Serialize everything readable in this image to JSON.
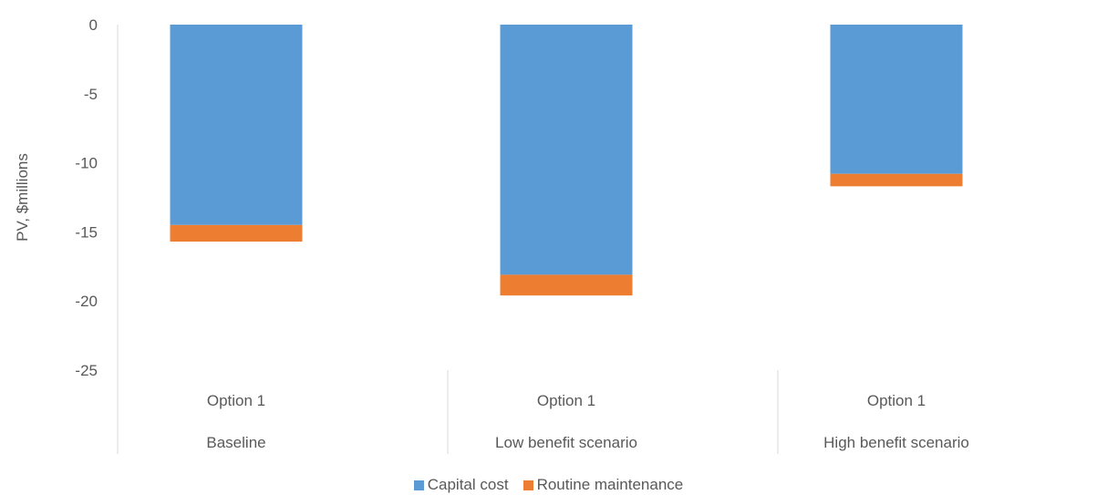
{
  "chart_data": {
    "type": "bar",
    "stacked": true,
    "categories": [
      {
        "label": "Option 1",
        "group": "Baseline"
      },
      {
        "label": "Option 1",
        "group": "Low benefit scenario"
      },
      {
        "label": "Option 1",
        "group": "High benefit scenario"
      }
    ],
    "series": [
      {
        "name": "Capital cost",
        "color": "#5B9BD5",
        "values": [
          -14.5,
          -18.1,
          -10.8
        ]
      },
      {
        "name": "Routine maintenance",
        "color": "#ED7D31",
        "values": [
          -1.2,
          -1.5,
          -0.9
        ]
      }
    ],
    "ylabel": "PV, $millions",
    "xlabel": "",
    "ylim": [
      -25,
      0
    ],
    "yticks": [
      "0",
      "-5",
      "-10",
      "-15",
      "-20",
      "-25"
    ],
    "yticks_values": [
      0,
      -5,
      -10,
      -15,
      -20,
      -25
    ],
    "grid": false,
    "legend_position": "bottom"
  }
}
